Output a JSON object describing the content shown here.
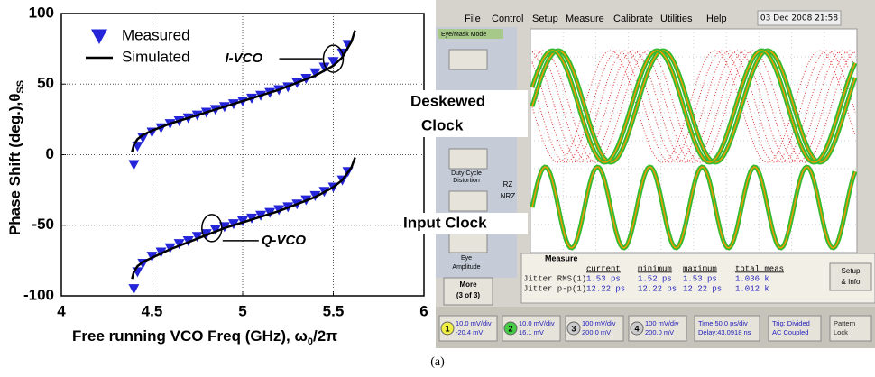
{
  "chart_data": {
    "type": "scatter-line",
    "x_label": [
      "Free running VCO Freq (GHz), ω",
      "0",
      "/2π"
    ],
    "y_label": [
      "Phase Shift (deg.),θ",
      "SS"
    ],
    "xlim": [
      4,
      6
    ],
    "xticks": [
      4,
      4.5,
      5,
      5.5,
      6
    ],
    "ylim": [
      -100,
      100
    ],
    "yticks": [
      -100,
      -50,
      0,
      50,
      100
    ],
    "grid": true,
    "legend": "upper-left",
    "series": [
      {
        "name": "Measured",
        "marker": "triangle-down",
        "color": "#2424d8",
        "x": [
          4.4,
          4.42,
          4.45,
          4.5,
          4.55,
          4.6,
          4.65,
          4.7,
          4.75,
          4.8,
          4.85,
          4.9,
          4.95,
          5.0,
          5.05,
          5.1,
          5.15,
          5.2,
          5.25,
          5.3,
          5.35,
          5.4,
          5.45,
          5.5,
          5.55,
          5.58,
          4.4,
          4.42,
          4.45,
          4.5,
          4.55,
          4.6,
          4.65,
          4.7,
          4.75,
          4.8,
          4.85,
          4.9,
          4.95,
          5.0,
          5.05,
          5.1,
          5.15,
          5.2,
          5.25,
          5.3,
          5.35,
          5.4,
          5.45,
          5.5,
          5.55,
          5.58
        ],
        "values": [
          -7,
          6,
          12,
          16,
          19,
          22,
          24,
          26,
          28,
          30,
          32,
          34,
          36,
          38,
          40,
          42,
          44,
          46,
          48,
          51,
          54,
          58,
          62,
          66,
          72,
          78,
          -95,
          -83,
          -77,
          -72,
          -69,
          -66,
          -63,
          -61,
          -58,
          -56,
          -53,
          -51,
          -49,
          -47,
          -45,
          -43,
          -41,
          -39,
          -37,
          -35,
          -32,
          -29,
          -26,
          -23,
          -18,
          -12
        ]
      },
      {
        "name": "Simulated",
        "marker": "line",
        "color": "#000000",
        "x": [
          4.39,
          4.4,
          4.42,
          4.45,
          4.5,
          4.6,
          4.7,
          4.8,
          4.9,
          5.0,
          5.1,
          5.2,
          5.3,
          5.4,
          5.5,
          5.55,
          5.6,
          5.62,
          5.6,
          4.39,
          4.4,
          4.42,
          4.45,
          4.5,
          4.6,
          4.7,
          4.8,
          4.9,
          5.0,
          5.1,
          5.2,
          5.3,
          5.4,
          5.5,
          5.55,
          5.6,
          5.62
        ],
        "values": [
          2,
          7,
          11,
          14,
          17,
          22,
          26,
          30,
          34,
          38,
          42,
          46,
          51,
          56,
          63,
          69,
          80,
          88,
          null,
          -88,
          -83,
          -79,
          -76,
          -73,
          -67,
          -62,
          -57,
          -52,
          -48,
          -44,
          -40,
          -35,
          -30,
          -23,
          -18,
          -9,
          -2
        ]
      }
    ],
    "annotations": [
      {
        "text": "I-VCO",
        "x": 5.5,
        "y": 68
      },
      {
        "text": "Q-VCO",
        "x": 4.83,
        "y": -52
      }
    ]
  },
  "caption": "(a)",
  "screenshot": {
    "menu": [
      "File",
      "Control",
      "Setup",
      "Measure",
      "Calibrate",
      "Utilities",
      "Help"
    ],
    "date": "03 Dec 2008 21:58",
    "mode": "Eye/Mask Mode",
    "side_text": [
      "Duty Cycle",
      "Distortion",
      "Eye",
      "Amplitude"
    ],
    "more": [
      "More",
      "(3 of 3)"
    ],
    "rz": [
      "RZ",
      "NRZ"
    ],
    "labels": [
      "Deskewed",
      "Clock",
      "Input Clock"
    ],
    "measure": {
      "title": "Measure",
      "headers": [
        "current",
        "minimum",
        "maximum",
        "total meas"
      ],
      "rows": [
        [
          "Jitter RMS(1)",
          "1.53 ps",
          "1.52 ps",
          "1.53 ps",
          "1.036 k"
        ],
        [
          "Jitter p-p(1)",
          "12.22 ps",
          "12.22 ps",
          "12.22 ps",
          "1.012 k"
        ]
      ],
      "setup": [
        "Setup",
        "& Info"
      ]
    },
    "channels": [
      {
        "n": "1",
        "lines": [
          "10.0 mV/div",
          "-20.4 mV"
        ]
      },
      {
        "n": "2",
        "lines": [
          "10.0 mV/div",
          "16.1 mV"
        ]
      },
      {
        "n": "3",
        "lines": [
          "100 mV/div",
          "200.0 mV"
        ]
      },
      {
        "n": "4",
        "lines": [
          "100 mV/div",
          "200.0 mV"
        ]
      }
    ],
    "time": [
      "Time:50.0 ps/div",
      "Delay:43.0918 ns"
    ],
    "trig": [
      "Trig: Divided",
      "AC Coupled"
    ],
    "pattern": [
      "Pattern",
      "Lock"
    ]
  }
}
